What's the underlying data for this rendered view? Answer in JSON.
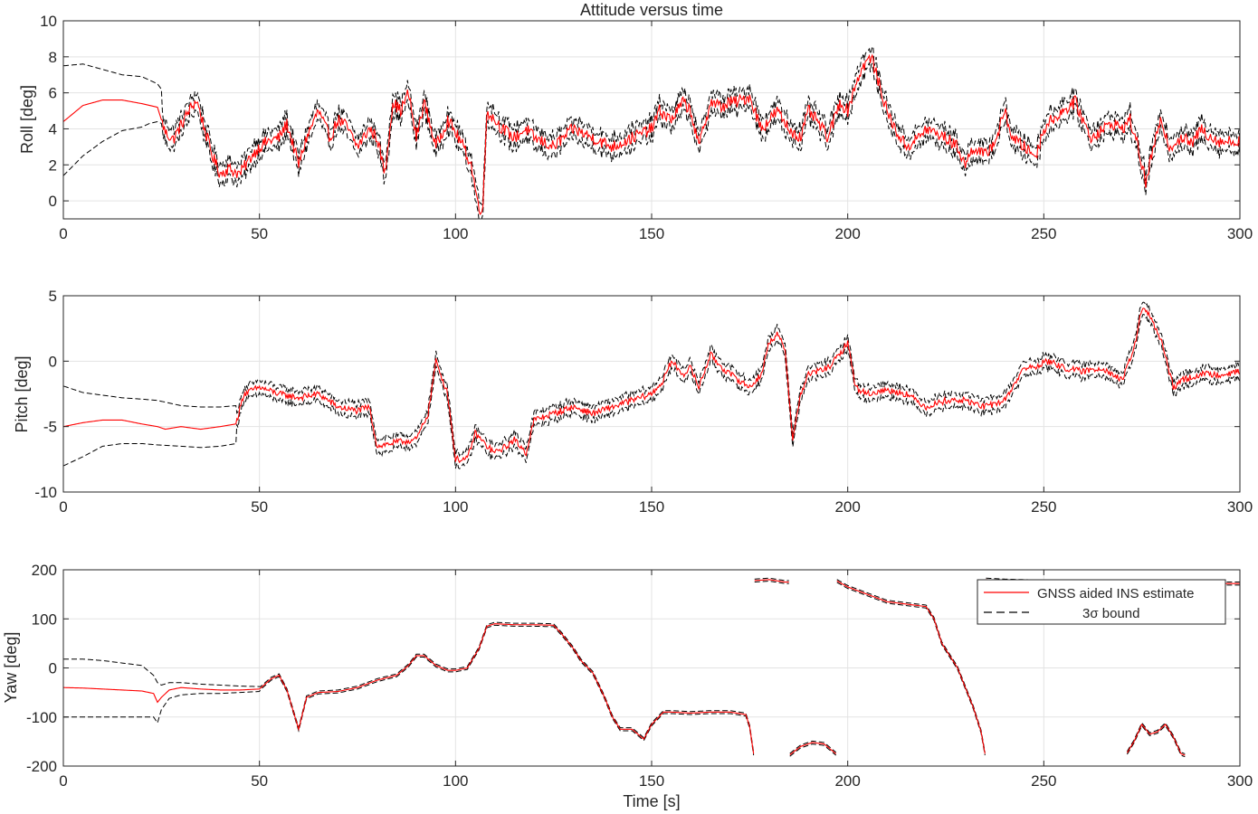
{
  "figure": {
    "title": "Attitude versus time",
    "xlabel": "Time [s]",
    "legend": {
      "entries": [
        "GNSS aided INS estimate",
        "3σ  bound"
      ],
      "placement": "top-right of yaw panel"
    },
    "colors": {
      "estimate": "#ff0000",
      "bound": "#000000",
      "grid": "#e3e3e3",
      "axes": "#262626"
    }
  },
  "chart_data": [
    {
      "type": "line",
      "ylabel": "Roll [deg]",
      "xlim": [
        0,
        300
      ],
      "ylim": [
        -1,
        10
      ],
      "xticks": [
        0,
        50,
        100,
        150,
        200,
        250,
        300
      ],
      "yticks": [
        0,
        2,
        4,
        6,
        8,
        10
      ],
      "grid": true,
      "bound_offset_deg": 0.5,
      "series": [
        {
          "name": "GNSS aided INS estimate",
          "x": [
            0,
            5,
            10,
            15,
            20,
            24,
            26,
            28,
            30,
            32,
            34,
            36,
            38,
            40,
            42,
            45,
            48,
            50,
            52,
            55,
            57,
            60,
            62,
            65,
            68,
            70,
            72,
            75,
            78,
            80,
            82,
            84,
            86,
            88,
            90,
            92,
            95,
            98,
            100,
            102,
            104,
            106,
            107,
            108,
            110,
            112,
            115,
            118,
            120,
            125,
            130,
            135,
            140,
            145,
            150,
            152,
            155,
            158,
            160,
            162,
            165,
            168,
            170,
            172,
            175,
            178,
            180,
            182,
            185,
            188,
            190,
            192,
            195,
            198,
            200,
            202,
            204,
            206,
            208,
            210,
            212,
            215,
            218,
            220,
            222,
            225,
            228,
            230,
            232,
            235,
            238,
            240,
            242,
            245,
            248,
            250,
            252,
            255,
            258,
            260,
            262,
            265,
            268,
            270,
            272,
            274,
            276,
            278,
            280,
            282,
            285,
            288,
            290,
            293,
            295,
            300
          ],
          "y": [
            4.4,
            5.3,
            5.6,
            5.6,
            5.4,
            5.2,
            3.8,
            3.4,
            4.2,
            5.0,
            5.6,
            4.0,
            2.5,
            1.5,
            1.8,
            1.5,
            2.5,
            3.0,
            3.3,
            3.5,
            4.3,
            2.0,
            3.5,
            5.0,
            3.5,
            4.5,
            4.2,
            3.0,
            4.0,
            3.5,
            1.5,
            5.5,
            5.0,
            6.0,
            3.5,
            5.5,
            3.0,
            4.5,
            3.8,
            3.0,
            2.0,
            -0.5,
            -0.2,
            5.0,
            4.5,
            4.0,
            3.5,
            4.0,
            3.5,
            3.0,
            4.0,
            3.5,
            3.0,
            3.5,
            4.0,
            5.0,
            4.5,
            5.5,
            5.0,
            3.0,
            5.5,
            5.2,
            5.5,
            5.5,
            5.8,
            4.0,
            4.5,
            5.0,
            4.0,
            3.5,
            5.0,
            4.5,
            3.5,
            5.5,
            5.0,
            6.5,
            7.5,
            8.0,
            6.5,
            5.0,
            4.0,
            3.0,
            3.5,
            4.0,
            3.8,
            3.5,
            3.0,
            2.0,
            3.0,
            2.5,
            3.5,
            5.0,
            3.5,
            3.0,
            2.5,
            4.0,
            4.5,
            5.0,
            5.5,
            4.5,
            3.5,
            4.0,
            4.3,
            4.0,
            4.5,
            3.0,
            1.0,
            3.0,
            4.5,
            3.0,
            3.5,
            3.2,
            4.0,
            3.5,
            3.3,
            3.3
          ]
        },
        {
          "name": "3σ  bound",
          "x": [
            0,
            5,
            10,
            15,
            20,
            22,
            24,
            25
          ],
          "y_upper": [
            7.5,
            7.6,
            7.3,
            7.0,
            6.9,
            6.7,
            6.5,
            6.2
          ],
          "y_lower": [
            1.4,
            2.5,
            3.3,
            3.9,
            4.1,
            4.3,
            4.4,
            4.3
          ]
        }
      ]
    },
    {
      "type": "line",
      "ylabel": "Pitch [deg]",
      "xlim": [
        0,
        300
      ],
      "ylim": [
        -10,
        5
      ],
      "xticks": [
        0,
        50,
        100,
        150,
        200,
        250,
        300
      ],
      "yticks": [
        -10,
        -5,
        0,
        5
      ],
      "grid": true,
      "bound_offset_deg": 0.5,
      "series": [
        {
          "name": "GNSS aided INS estimate",
          "x": [
            0,
            5,
            10,
            15,
            20,
            24,
            26,
            30,
            35,
            40,
            44,
            46,
            50,
            55,
            60,
            65,
            70,
            75,
            78,
            80,
            85,
            90,
            93,
            95,
            98,
            100,
            103,
            105,
            108,
            110,
            113,
            115,
            118,
            120,
            125,
            130,
            135,
            140,
            145,
            150,
            153,
            155,
            158,
            160,
            162,
            165,
            168,
            170,
            175,
            178,
            180,
            182,
            184,
            186,
            188,
            190,
            195,
            198,
            200,
            202,
            205,
            210,
            215,
            220,
            225,
            230,
            235,
            240,
            245,
            248,
            250,
            253,
            255,
            260,
            265,
            270,
            273,
            275,
            277,
            280,
            283,
            285,
            290,
            295,
            300
          ],
          "y": [
            -5.0,
            -4.7,
            -4.5,
            -4.5,
            -4.8,
            -5.0,
            -5.2,
            -5.0,
            -5.2,
            -5.0,
            -4.8,
            -2.5,
            -2.0,
            -2.5,
            -2.8,
            -2.5,
            -3.5,
            -3.8,
            -3.5,
            -6.5,
            -6.2,
            -6.0,
            -4.0,
            0.0,
            -2.5,
            -7.5,
            -7.5,
            -5.5,
            -6.5,
            -7.0,
            -6.5,
            -6.0,
            -7.0,
            -4.5,
            -4.0,
            -3.5,
            -4.0,
            -3.5,
            -3.0,
            -2.5,
            -1.5,
            0.0,
            -1.0,
            -0.5,
            -2.0,
            0.5,
            -0.5,
            -1.0,
            -2.0,
            -1.0,
            1.5,
            2.0,
            1.0,
            -6.0,
            -2.5,
            -1.0,
            -0.5,
            0.5,
            1.5,
            -2.0,
            -2.5,
            -2.2,
            -2.5,
            -3.5,
            -3.0,
            -3.0,
            -3.5,
            -3.0,
            -0.5,
            -0.5,
            0.0,
            -0.2,
            -0.5,
            -0.8,
            -0.5,
            -1.5,
            1.0,
            4.0,
            3.5,
            1.5,
            -2.0,
            -1.5,
            -1.0,
            -1.0,
            -0.8
          ]
        },
        {
          "name": "3σ  bound",
          "x": [
            0,
            5,
            10,
            15,
            20,
            24,
            30,
            35,
            40,
            44
          ],
          "y_upper": [
            -1.9,
            -2.4,
            -2.6,
            -2.8,
            -2.9,
            -3.0,
            -3.4,
            -3.5,
            -3.5,
            -3.4
          ],
          "y_lower": [
            -8.0,
            -7.3,
            -6.5,
            -6.3,
            -6.3,
            -6.4,
            -6.5,
            -6.6,
            -6.5,
            -6.3
          ]
        }
      ]
    },
    {
      "type": "line",
      "ylabel": "Yaw [deg]",
      "xlabel": "Time [s]",
      "xlim": [
        0,
        300
      ],
      "ylim": [
        -200,
        200
      ],
      "xticks": [
        0,
        50,
        100,
        150,
        200,
        250,
        300
      ],
      "yticks": [
        -200,
        -100,
        0,
        100,
        200
      ],
      "grid": true,
      "bound_offset_deg": 3,
      "series": [
        {
          "name": "GNSS aided INS estimate",
          "x": [
            0,
            5,
            10,
            15,
            20,
            23,
            24,
            25,
            27,
            30,
            35,
            40,
            45,
            50,
            53,
            55,
            57,
            60,
            62,
            65,
            70,
            75,
            80,
            85,
            88,
            90,
            92,
            95,
            98,
            100,
            103,
            106,
            108,
            110,
            115,
            120,
            125,
            127,
            130,
            132,
            135,
            138,
            140,
            142,
            145,
            148,
            150,
            153,
            155,
            160,
            165,
            170,
            174,
            175,
            176,
            176.1,
            180,
            184,
            185,
            185.1,
            188,
            191,
            194,
            197,
            197.1,
            200,
            205,
            210,
            215,
            220,
            222,
            224,
            228,
            232,
            234,
            235,
            235.1,
            240,
            250,
            260,
            270,
            271,
            271.1,
            273,
            275,
            277,
            279,
            281,
            283,
            285,
            286,
            286.1,
            290,
            295,
            300
          ],
          "y": [
            -40,
            -41,
            -43,
            -45,
            -47,
            -52,
            -70,
            -60,
            -45,
            -40,
            -43,
            -45,
            -45,
            -43,
            -22,
            -15,
            -45,
            -125,
            -60,
            -50,
            -48,
            -40,
            -25,
            -15,
            5,
            25,
            25,
            5,
            -5,
            -5,
            0,
            40,
            85,
            90,
            88,
            88,
            87,
            70,
            40,
            15,
            -10,
            -60,
            -100,
            -125,
            -125,
            -145,
            -115,
            -90,
            -90,
            -92,
            -90,
            -90,
            -95,
            -120,
            -175,
            178,
            180,
            175,
            175,
            -178,
            -160,
            -152,
            -155,
            -175,
            178,
            165,
            150,
            135,
            130,
            125,
            100,
            50,
            0,
            -80,
            -130,
            -175,
            180,
            178,
            176,
            175,
            175,
            175,
            -175,
            -150,
            -115,
            -135,
            -130,
            -115,
            -140,
            -175,
            -178,
            175,
            173,
            172,
            172
          ]
        },
        {
          "name": "3σ  bound",
          "x": [
            0,
            5,
            10,
            15,
            20,
            23,
            24,
            25,
            27,
            30,
            35,
            40,
            45,
            50
          ],
          "y_upper": [
            18,
            18,
            15,
            10,
            5,
            -15,
            -30,
            -35,
            -30,
            -30,
            -33,
            -35,
            -37,
            -38
          ],
          "y_lower": [
            -100,
            -100,
            -100,
            -100,
            -100,
            -100,
            -112,
            -85,
            -62,
            -55,
            -52,
            -52,
            -50,
            -48
          ]
        }
      ]
    }
  ]
}
